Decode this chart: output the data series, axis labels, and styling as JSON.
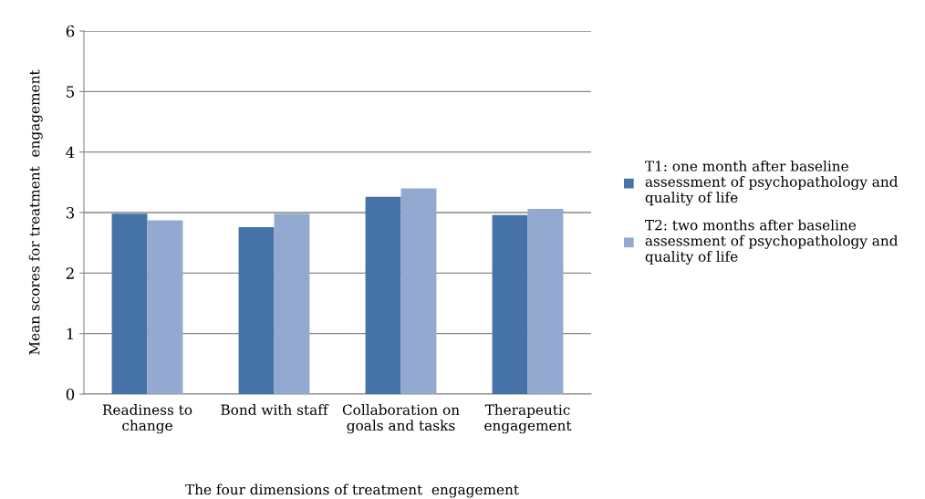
{
  "chart_data": {
    "type": "bar",
    "xlabel": "The four dimensions of treatment  engagement",
    "ylabel": "Mean scores for treatment  engagement",
    "categories": [
      "Readiness to\nchange",
      "Bond with staff",
      "Collaboration on\ngoals and tasks",
      "Therapeutic\nengagement"
    ],
    "series": [
      {
        "name": "T1: one month after baseline\nassessment of psychopathology and\nquality of life",
        "color": "#4572a7",
        "values": [
          2.98,
          2.76,
          3.26,
          2.96
        ]
      },
      {
        "name": "T2: two months after baseline\nassessment of psychopathology and\nquality of life",
        "color": "#93a9cf",
        "values": [
          2.87,
          2.98,
          3.4,
          3.06
        ]
      }
    ],
    "ylim": [
      0,
      6
    ],
    "yticks": [
      0,
      1,
      2,
      3,
      4,
      5,
      6
    ],
    "grid": "y",
    "legend": "right"
  }
}
